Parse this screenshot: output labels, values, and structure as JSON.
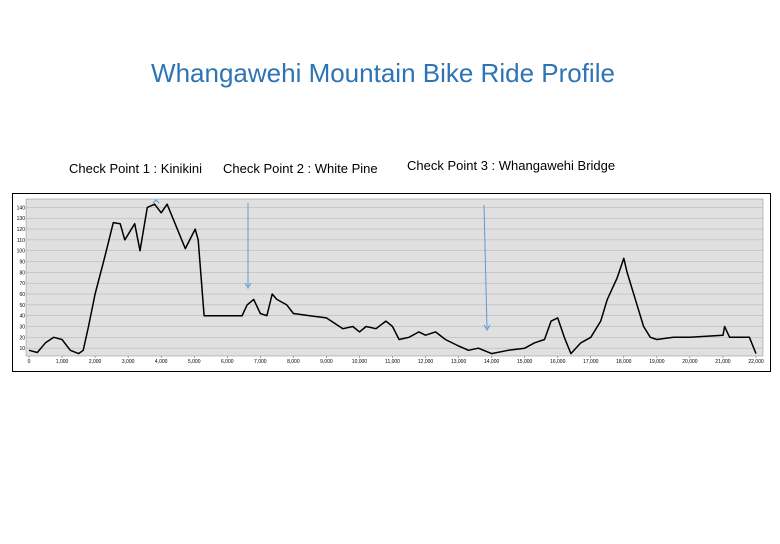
{
  "title": "Whangawehi Mountain Bike Ride Profile",
  "checkpoints": [
    "Check Point 1 : Kinikini",
    "Check Point 2 : White Pine",
    "Check Point 3 : Whangawehi Bridge"
  ],
  "chart_data": {
    "type": "line",
    "color": "#000000",
    "grid": true,
    "x": [
      0,
      250,
      500,
      750,
      1000,
      1250,
      1500,
      1640,
      1800,
      2000,
      2300,
      2550,
      2760,
      2900,
      3200,
      3360,
      3580,
      3800,
      4000,
      4180,
      4420,
      4730,
      5030,
      5120,
      5300,
      5600,
      6000,
      6450,
      6600,
      6800,
      7000,
      7200,
      7360,
      7500,
      7800,
      8000,
      8500,
      9000,
      9500,
      9800,
      10000,
      10200,
      10500,
      10800,
      11000,
      11200,
      11500,
      11800,
      12000,
      12300,
      12600,
      13000,
      13300,
      13600,
      14000,
      14500,
      15000,
      15300,
      15600,
      15800,
      16000,
      16200,
      16400,
      16700,
      17000,
      17300,
      17500,
      17800,
      18000,
      18100,
      18300,
      18600,
      18800,
      19000,
      19500,
      20000,
      20500,
      21000,
      21050,
      21200,
      21500,
      21800,
      22000
    ],
    "values": [
      8,
      6,
      15,
      20,
      18,
      8,
      5,
      8,
      30,
      60,
      95,
      126,
      125,
      110,
      125,
      100,
      140,
      143,
      135,
      143,
      125,
      102,
      120,
      110,
      40,
      40,
      40,
      40,
      50,
      55,
      42,
      40,
      60,
      55,
      50,
      42,
      40,
      38,
      28,
      30,
      25,
      30,
      28,
      35,
      30,
      18,
      20,
      25,
      22,
      25,
      18,
      12,
      8,
      10,
      5,
      8,
      10,
      15,
      18,
      35,
      38,
      20,
      5,
      15,
      20,
      35,
      55,
      75,
      93,
      80,
      60,
      30,
      20,
      18,
      20,
      20,
      21,
      22,
      30,
      20,
      20,
      20,
      5
    ],
    "xlim": [
      0,
      22000
    ],
    "ylim": [
      0,
      145
    ],
    "xticks": [
      0,
      {
        "value": 1000,
        "label": "1,000"
      },
      {
        "value": 2000,
        "label": "2,000"
      },
      {
        "value": 3000,
        "label": "3,000"
      },
      {
        "value": 4000,
        "label": "4,000"
      },
      {
        "value": 5000,
        "label": "5,000"
      },
      {
        "value": 6000,
        "label": "6,000"
      },
      {
        "value": 7000,
        "label": "7,000"
      },
      {
        "value": 8000,
        "label": "8,000"
      },
      {
        "value": 9000,
        "label": "9,000"
      },
      {
        "value": 10000,
        "label": "10,000"
      },
      {
        "value": 11000,
        "label": "11,000"
      },
      {
        "value": 12000,
        "label": "12,000"
      },
      {
        "value": 13000,
        "label": "13,000"
      },
      {
        "value": 14000,
        "label": "14,000"
      },
      {
        "value": 15000,
        "label": "15,000"
      },
      {
        "value": 16000,
        "label": "16,000"
      },
      {
        "value": 17000,
        "label": "17,000"
      },
      {
        "value": 18000,
        "label": "18,000"
      },
      {
        "value": 19000,
        "label": "19,000"
      },
      {
        "value": 20000,
        "label": "20,000"
      },
      {
        "value": 21000,
        "label": "21,000"
      },
      {
        "value": 22000,
        "label": "22,000"
      }
    ],
    "yticks": [
      10,
      20,
      30,
      40,
      50,
      60,
      70,
      80,
      90,
      100,
      110,
      120,
      130,
      140
    ]
  }
}
